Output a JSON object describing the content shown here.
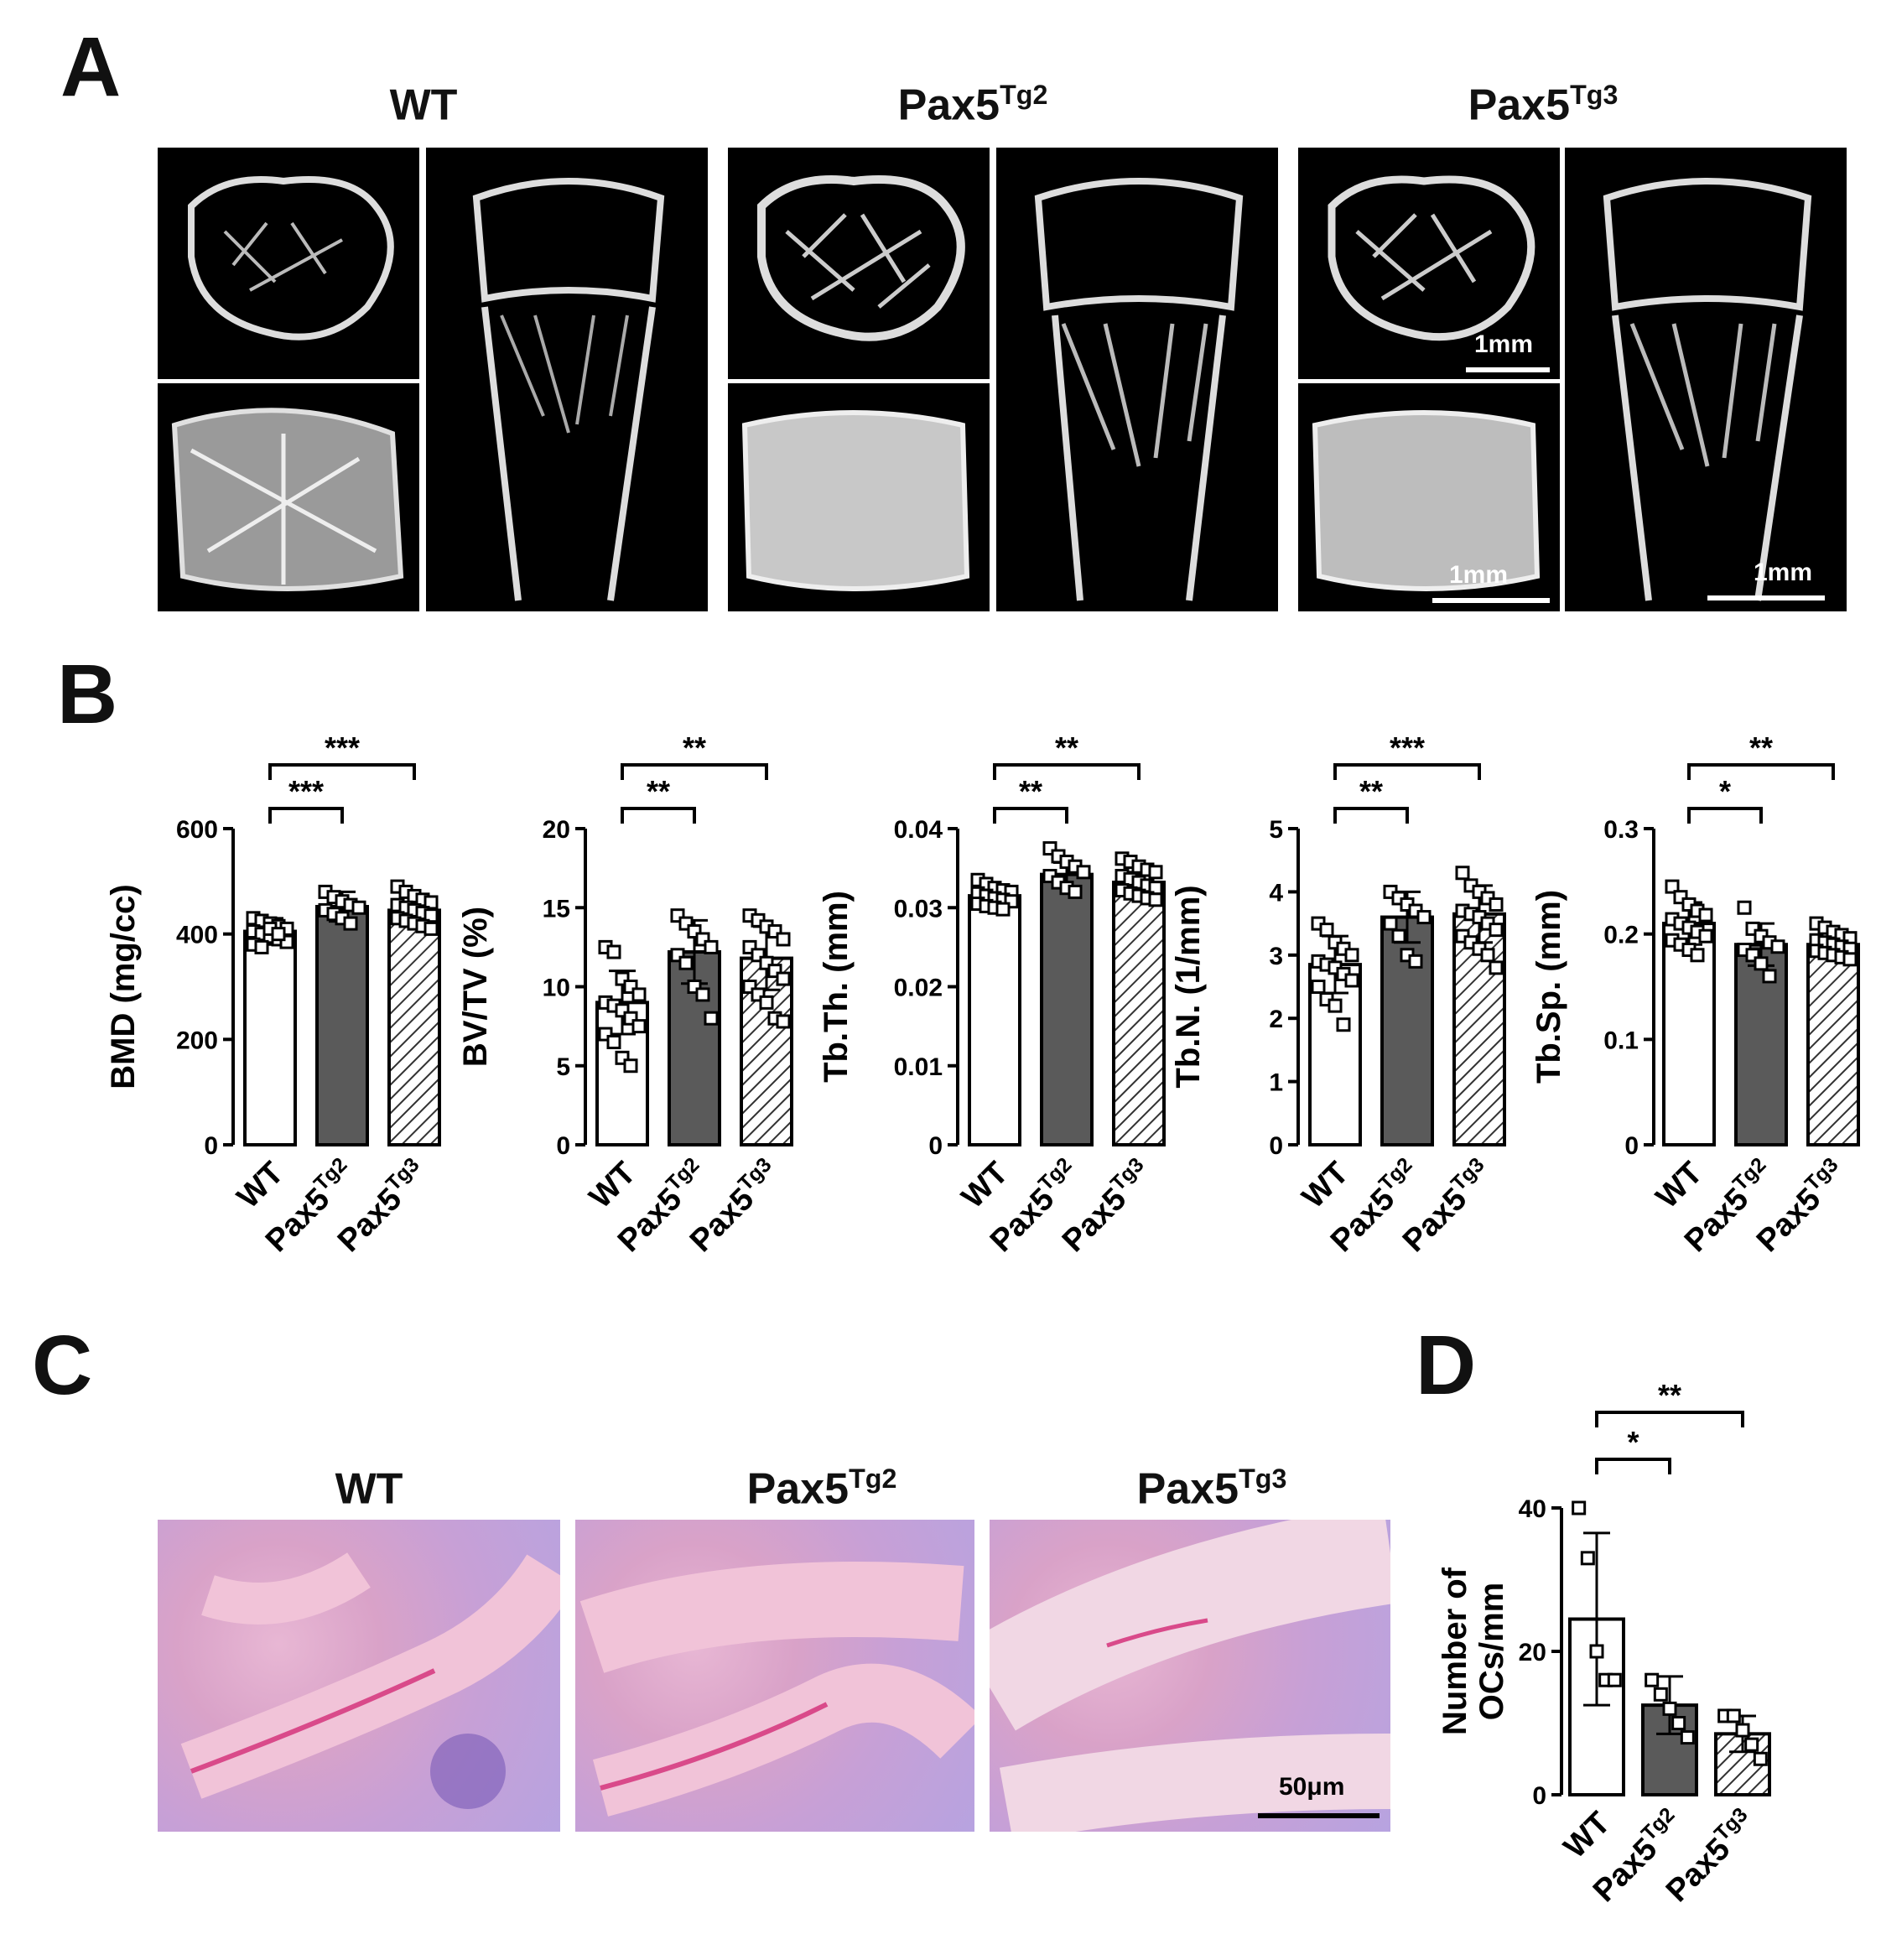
{
  "panels": {
    "a": "A",
    "b": "B",
    "c": "C",
    "d": "D"
  },
  "microct": {
    "groups": [
      {
        "base": "WT",
        "sup": ""
      },
      {
        "base": "Pax5",
        "sup": "Tg2"
      },
      {
        "base": "Pax5",
        "sup": "Tg3"
      }
    ],
    "scale_label": "1mm"
  },
  "histology": {
    "groups": [
      {
        "base": "WT",
        "sup": ""
      },
      {
        "base": "Pax5",
        "sup": "Tg2"
      },
      {
        "base": "Pax5",
        "sup": "Tg3"
      }
    ],
    "scale_label": "50μm"
  },
  "colors": {
    "wt_fill": "#ffffff",
    "tg2_fill": "#5a5a5a",
    "tg3_fill": "hatched",
    "stroke": "#000000",
    "stain_pink": "#d94a8a",
    "stain_purple": "#6a4cb0"
  },
  "chart_data": [
    {
      "type": "bar",
      "ylabel": "BMD (mg/cc)",
      "ylim": [
        0,
        600
      ],
      "yticks": [
        "0",
        "200",
        "400",
        "600"
      ],
      "categories": [
        {
          "base": "WT",
          "sup": ""
        },
        {
          "base": "Pax5",
          "sup": "Tg2"
        },
        {
          "base": "Pax5",
          "sup": "Tg3"
        }
      ],
      "values": [
        405,
        452,
        445
      ],
      "errors": [
        25,
        28,
        30
      ],
      "points": [
        [
          430,
          425,
          420,
          415,
          410,
          405,
          400,
          395,
          390,
          385,
          380,
          375,
          410,
          400
        ],
        [
          480,
          470,
          462,
          455,
          450,
          445,
          438,
          430,
          420
        ],
        [
          490,
          480,
          472,
          465,
          460,
          455,
          450,
          445,
          440,
          435,
          430,
          425,
          420,
          415,
          410
        ]
      ],
      "significance": [
        {
          "from": 0,
          "to": 1,
          "label": "***"
        },
        {
          "from": 0,
          "to": 2,
          "label": "***"
        }
      ]
    },
    {
      "type": "bar",
      "ylabel": "BV/TV (%)",
      "ylim": [
        0,
        20
      ],
      "yticks": [
        "0",
        "5",
        "10",
        "15",
        "20"
      ],
      "categories": [
        {
          "base": "WT",
          "sup": ""
        },
        {
          "base": "Pax5",
          "sup": "Tg2"
        },
        {
          "base": "Pax5",
          "sup": "Tg3"
        }
      ],
      "values": [
        9.0,
        12.2,
        11.8
      ],
      "errors": [
        2.0,
        2.0,
        2.0
      ],
      "points": [
        [
          12.5,
          12.2,
          10.5,
          10.0,
          9.5,
          9.0,
          8.8,
          8.5,
          8.0,
          7.5,
          7.0,
          6.5,
          5.5,
          5.0
        ],
        [
          14.5,
          14.0,
          13.5,
          13.0,
          12.5,
          12.0,
          11.5,
          10.0,
          9.5,
          8.0
        ],
        [
          14.5,
          14.2,
          13.8,
          13.5,
          13.0,
          12.5,
          12.0,
          11.5,
          11.0,
          10.5,
          10.0,
          9.5,
          9.0,
          8.0,
          7.8
        ]
      ],
      "significance": [
        {
          "from": 0,
          "to": 1,
          "label": "**"
        },
        {
          "from": 0,
          "to": 2,
          "label": "**"
        }
      ]
    },
    {
      "type": "bar",
      "ylabel": "Tb.Th. (mm)",
      "ylim": [
        0,
        0.04
      ],
      "yticks": [
        "0",
        "0.01",
        "0.02",
        "0.03",
        "0.04"
      ],
      "categories": [
        {
          "base": "WT",
          "sup": ""
        },
        {
          "base": "Pax5",
          "sup": "Tg2"
        },
        {
          "base": "Pax5",
          "sup": "Tg3"
        }
      ],
      "values": [
        0.0315,
        0.0342,
        0.0332
      ],
      "errors": [
        0.0012,
        0.0015,
        0.0013
      ],
      "points": [
        [
          0.0335,
          0.033,
          0.0325,
          0.0322,
          0.032,
          0.0318,
          0.0315,
          0.0312,
          0.031,
          0.0308,
          0.0305,
          0.0302,
          0.03,
          0.0298
        ],
        [
          0.0375,
          0.0365,
          0.0358,
          0.0352,
          0.0345,
          0.034,
          0.0332,
          0.0325,
          0.032
        ],
        [
          0.0362,
          0.0358,
          0.0352,
          0.0348,
          0.0345,
          0.034,
          0.0336,
          0.0332,
          0.0328,
          0.0325,
          0.0322,
          0.0318,
          0.0315,
          0.0312,
          0.031
        ]
      ],
      "significance": [
        {
          "from": 0,
          "to": 1,
          "label": "**"
        },
        {
          "from": 0,
          "to": 2,
          "label": "**"
        }
      ]
    },
    {
      "type": "bar",
      "ylabel": "Tb.N. (1/mm)",
      "ylim": [
        0,
        5
      ],
      "yticks": [
        "0",
        "1",
        "2",
        "3",
        "4",
        "5"
      ],
      "categories": [
        {
          "base": "WT",
          "sup": ""
        },
        {
          "base": "Pax5",
          "sup": "Tg2"
        },
        {
          "base": "Pax5",
          "sup": "Tg3"
        }
      ],
      "values": [
        2.85,
        3.6,
        3.65
      ],
      "errors": [
        0.45,
        0.4,
        0.45
      ],
      "points": [
        [
          3.5,
          3.4,
          3.2,
          3.1,
          3.0,
          2.9,
          2.85,
          2.8,
          2.7,
          2.6,
          2.5,
          2.3,
          2.2,
          1.9
        ],
        [
          4.0,
          3.9,
          3.8,
          3.7,
          3.6,
          3.5,
          3.3,
          3.0,
          2.9
        ],
        [
          4.3,
          4.1,
          4.0,
          3.9,
          3.8,
          3.7,
          3.65,
          3.6,
          3.5,
          3.4,
          3.3,
          3.2,
          3.1,
          3.0,
          2.8
        ]
      ],
      "significance": [
        {
          "from": 0,
          "to": 1,
          "label": "**"
        },
        {
          "from": 0,
          "to": 2,
          "label": "***"
        }
      ]
    },
    {
      "type": "bar",
      "ylabel": "Tb.Sp. (mm)",
      "ylim": [
        0,
        0.3
      ],
      "yticks": [
        "0",
        "0.1",
        "0.2",
        "0.3"
      ],
      "categories": [
        {
          "base": "WT",
          "sup": ""
        },
        {
          "base": "Pax5",
          "sup": "Tg2"
        },
        {
          "base": "Pax5",
          "sup": "Tg3"
        }
      ],
      "values": [
        0.21,
        0.19,
        0.19
      ],
      "errors": [
        0.02,
        0.02,
        0.012
      ],
      "points": [
        [
          0.245,
          0.235,
          0.228,
          0.222,
          0.218,
          0.214,
          0.21,
          0.206,
          0.202,
          0.198,
          0.194,
          0.19,
          0.185,
          0.18
        ],
        [
          0.225,
          0.205,
          0.198,
          0.192,
          0.188,
          0.185,
          0.18,
          0.172,
          0.16
        ],
        [
          0.21,
          0.206,
          0.202,
          0.199,
          0.196,
          0.194,
          0.192,
          0.19,
          0.188,
          0.186,
          0.184,
          0.182,
          0.18,
          0.178,
          0.176
        ]
      ],
      "significance": [
        {
          "from": 0,
          "to": 1,
          "label": "*"
        },
        {
          "from": 0,
          "to": 2,
          "label": "**"
        }
      ]
    },
    {
      "type": "bar",
      "ylabel": "Number of\nOCs/mm",
      "ylim": [
        0,
        40
      ],
      "yticks": [
        "0",
        "20",
        "40"
      ],
      "categories": [
        {
          "base": "WT",
          "sup": ""
        },
        {
          "base": "Pax5",
          "sup": "Tg2"
        },
        {
          "base": "Pax5",
          "sup": "Tg3"
        }
      ],
      "values": [
        24.5,
        12.5,
        8.5
      ],
      "errors": [
        12.0,
        4.0,
        2.5
      ],
      "points": [
        [
          40,
          33,
          20,
          16,
          16
        ],
        [
          16,
          14,
          12,
          10,
          8
        ],
        [
          11,
          11,
          9,
          7,
          5
        ]
      ],
      "significance": [
        {
          "from": 0,
          "to": 1,
          "label": "*"
        },
        {
          "from": 0,
          "to": 2,
          "label": "**"
        }
      ]
    }
  ]
}
